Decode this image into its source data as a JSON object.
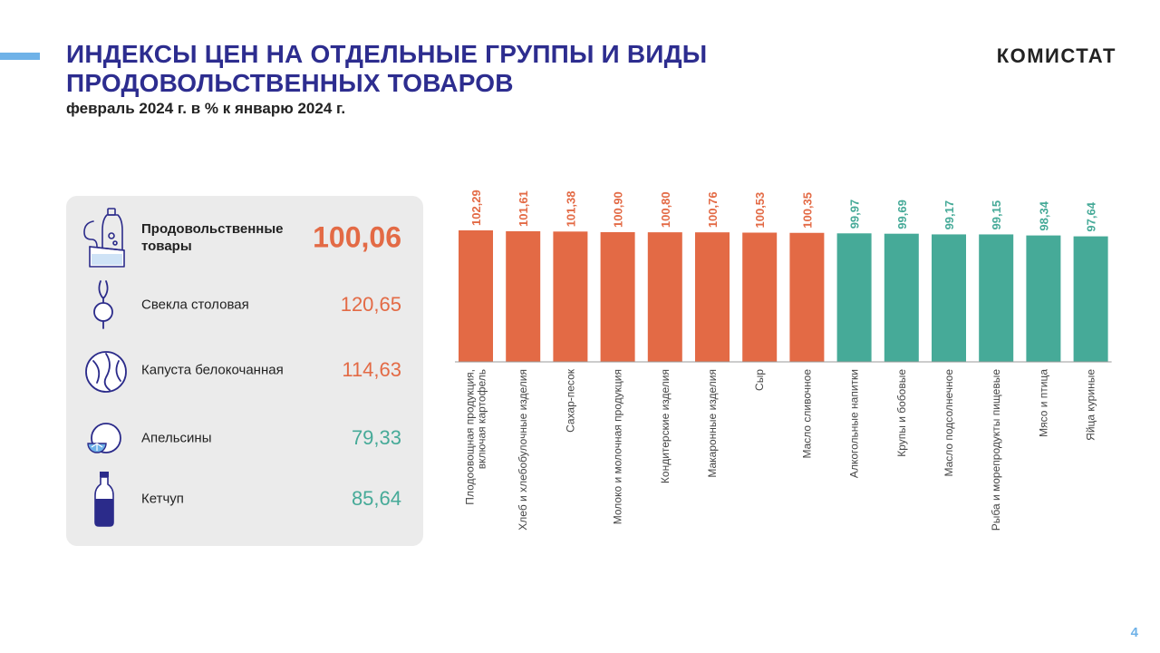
{
  "header": {
    "title_line1": "ИНДЕКСЫ ЦЕН НА ОТДЕЛЬНЫЕ  ГРУППЫ И ВИДЫ",
    "title_line2": "ПРОДОВОЛЬСТВЕННЫХ  ТОВАРОВ",
    "subtitle": "февраль 2024 г. в % к январю 2024 г.",
    "brand": "КОМИСТАТ"
  },
  "page_number": "4",
  "colors": {
    "accent_blue": "#6fb2e8",
    "title_navy": "#2d2d8f",
    "increase_orange": "#e36a45",
    "decrease_teal": "#46aa98",
    "icon_navy": "#2b2b8a"
  },
  "panel": {
    "items": [
      {
        "label": "Продовольственные товары",
        "value": "100,06",
        "icon": "food-products-icon",
        "color": "#e36a45"
      },
      {
        "label": "Свекла столовая",
        "value": "120,65",
        "icon": "beet-icon",
        "color": "#e36a45"
      },
      {
        "label": "Капуста белокочанная",
        "value": "114,63",
        "icon": "cabbage-icon",
        "color": "#e36a45"
      },
      {
        "label": "Апельсины",
        "value": "79,33",
        "icon": "orange-icon",
        "color": "#46aa98"
      },
      {
        "label": "Кетчуп",
        "value": "85,64",
        "icon": "ketchup-bottle-icon",
        "color": "#46aa98"
      }
    ]
  },
  "chart_data": {
    "type": "bar",
    "categories": [
      "Плодоовощная  продукция,\nвключая картофель",
      "Хлеб  и хлебобулочные  изделия",
      "Сахар-песок",
      "Молоко  и молочная  продукция",
      "Кондитерские  изделия",
      "Макаронные  изделия",
      "Сыр",
      "Масло сливочное",
      "Алкогольные  напитки",
      "Крупы и бобовые",
      "Масло подсолнечное",
      "Рыба и морепродукты  пищевые",
      "Мясо и птица",
      "Яйца куриные"
    ],
    "values": [
      102.29,
      101.61,
      101.38,
      100.9,
      100.8,
      100.76,
      100.53,
      100.35,
      99.97,
      99.69,
      99.17,
      99.15,
      98.34,
      97.64
    ],
    "value_labels": [
      "102,29",
      "101,61",
      "101,38",
      "100,90",
      "100,80",
      "100,76",
      "100,53",
      "100,35",
      "99,97",
      "99,69",
      "99,17",
      "99,15",
      "98,34",
      "97,64"
    ],
    "colors": [
      "#e36a45",
      "#e36a45",
      "#e36a45",
      "#e36a45",
      "#e36a45",
      "#e36a45",
      "#e36a45",
      "#e36a45",
      "#46aa98",
      "#46aa98",
      "#46aa98",
      "#46aa98",
      "#46aa98",
      "#46aa98"
    ],
    "title": "",
    "xlabel": "",
    "ylabel": "",
    "ylim": [
      0,
      103
    ],
    "grid": false,
    "legend": "none"
  }
}
